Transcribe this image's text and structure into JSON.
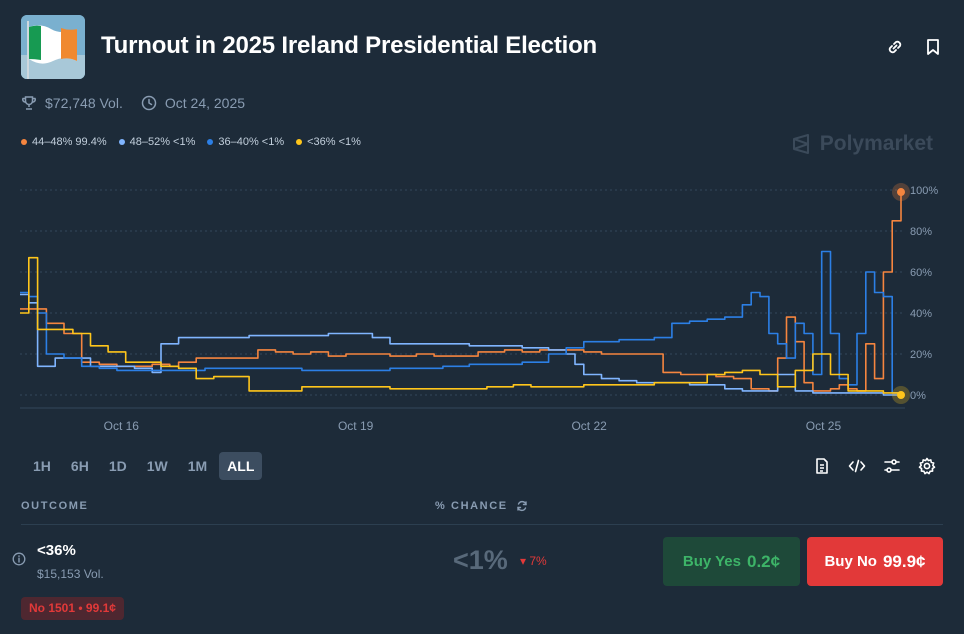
{
  "header": {
    "title": "Turnout in 2025 Ireland Presidential Election"
  },
  "meta": {
    "volume": "$72,748 Vol.",
    "date": "Oct 24, 2025"
  },
  "legend": [
    {
      "label": "44–48% 99.4%",
      "color": "#f5853f"
    },
    {
      "label": "48–52% <1%",
      "color": "#80b5ff"
    },
    {
      "label": "36–40% <1%",
      "color": "#2c7fe5"
    },
    {
      "label": "<36% <1%",
      "color": "#ffc61b"
    }
  ],
  "brand": "Polymarket",
  "chart_data": {
    "type": "line",
    "x_tick_labels": [
      "Oct 16",
      "Oct 19",
      "Oct 22",
      "Oct 25"
    ],
    "y_tick_labels": [
      "100%",
      "80%",
      "60%",
      "40%",
      "20%",
      "0%"
    ],
    "ylim": [
      0,
      100
    ],
    "grid": true,
    "series": [
      {
        "name": "44–48%",
        "color": "#f5853f",
        "values": [
          [
            0,
            42
          ],
          [
            3,
            35
          ],
          [
            5,
            30
          ],
          [
            7,
            16
          ],
          [
            9,
            15
          ],
          [
            11,
            14
          ],
          [
            13,
            14
          ],
          [
            15,
            15
          ],
          [
            17,
            14
          ],
          [
            18,
            16
          ],
          [
            20,
            18
          ],
          [
            22,
            18
          ],
          [
            25,
            18
          ],
          [
            27,
            22
          ],
          [
            29,
            21
          ],
          [
            31,
            20
          ],
          [
            33,
            21
          ],
          [
            35,
            19
          ],
          [
            37,
            20
          ],
          [
            40,
            20
          ],
          [
            42,
            19
          ],
          [
            45,
            20
          ],
          [
            47,
            19
          ],
          [
            50,
            19
          ],
          [
            52,
            21
          ],
          [
            55,
            22
          ],
          [
            57,
            21
          ],
          [
            59,
            22
          ],
          [
            62,
            22
          ],
          [
            64,
            21
          ],
          [
            66,
            20
          ],
          [
            68,
            20
          ],
          [
            70,
            20
          ],
          [
            72,
            20
          ],
          [
            73,
            11
          ],
          [
            75,
            10
          ],
          [
            77,
            10
          ],
          [
            79,
            9
          ],
          [
            81,
            8
          ],
          [
            83,
            3
          ],
          [
            85,
            2
          ],
          [
            86,
            18
          ],
          [
            87,
            38
          ],
          [
            88,
            26
          ],
          [
            89,
            6
          ],
          [
            90,
            2
          ],
          [
            92,
            3
          ],
          [
            93,
            5
          ],
          [
            94,
            3
          ],
          [
            95,
            2
          ],
          [
            96,
            25
          ],
          [
            97,
            8
          ],
          [
            98,
            60
          ],
          [
            99,
            85
          ],
          [
            100,
            99
          ]
        ]
      },
      {
        "name": "48–52%",
        "color": "#80b5ff",
        "values": [
          [
            0,
            49
          ],
          [
            1,
            45
          ],
          [
            2,
            14
          ],
          [
            4,
            18
          ],
          [
            6,
            18
          ],
          [
            8,
            14
          ],
          [
            10,
            14
          ],
          [
            12,
            14
          ],
          [
            13,
            13
          ],
          [
            14,
            13
          ],
          [
            15,
            11
          ],
          [
            16,
            25
          ],
          [
            18,
            28
          ],
          [
            20,
            28
          ],
          [
            23,
            28
          ],
          [
            26,
            29
          ],
          [
            29,
            29
          ],
          [
            32,
            29
          ],
          [
            35,
            30
          ],
          [
            38,
            30
          ],
          [
            40,
            28
          ],
          [
            42,
            25
          ],
          [
            45,
            25
          ],
          [
            48,
            25
          ],
          [
            51,
            24
          ],
          [
            54,
            24
          ],
          [
            57,
            23
          ],
          [
            60,
            22
          ],
          [
            62,
            20
          ],
          [
            63,
            15
          ],
          [
            64,
            10
          ],
          [
            66,
            8
          ],
          [
            68,
            7
          ],
          [
            70,
            6
          ],
          [
            72,
            6
          ],
          [
            74,
            6
          ],
          [
            76,
            5
          ],
          [
            78,
            5
          ],
          [
            80,
            3
          ],
          [
            82,
            2
          ],
          [
            84,
            2
          ],
          [
            86,
            10
          ],
          [
            88,
            2
          ],
          [
            90,
            1
          ],
          [
            92,
            1
          ],
          [
            95,
            1
          ],
          [
            98,
            0
          ],
          [
            100,
            0
          ]
        ]
      },
      {
        "name": "36–40%",
        "color": "#2c7fe5",
        "values": [
          [
            0,
            50
          ],
          [
            1,
            48
          ],
          [
            2,
            40
          ],
          [
            3,
            20
          ],
          [
            5,
            18
          ],
          [
            7,
            14
          ],
          [
            9,
            13
          ],
          [
            11,
            12
          ],
          [
            13,
            12
          ],
          [
            15,
            12
          ],
          [
            17,
            12
          ],
          [
            19,
            12
          ],
          [
            21,
            13
          ],
          [
            23,
            13
          ],
          [
            26,
            13
          ],
          [
            29,
            13
          ],
          [
            32,
            12
          ],
          [
            35,
            12
          ],
          [
            38,
            12
          ],
          [
            40,
            12
          ],
          [
            42,
            13
          ],
          [
            45,
            13
          ],
          [
            48,
            14
          ],
          [
            51,
            15
          ],
          [
            54,
            15
          ],
          [
            57,
            16
          ],
          [
            60,
            20
          ],
          [
            62,
            23
          ],
          [
            64,
            26
          ],
          [
            66,
            26
          ],
          [
            68,
            27
          ],
          [
            70,
            27
          ],
          [
            72,
            28
          ],
          [
            74,
            35
          ],
          [
            76,
            36
          ],
          [
            78,
            37
          ],
          [
            80,
            38
          ],
          [
            82,
            44
          ],
          [
            83,
            50
          ],
          [
            84,
            48
          ],
          [
            85,
            30
          ],
          [
            86,
            25
          ],
          [
            87,
            18
          ],
          [
            88,
            35
          ],
          [
            89,
            30
          ],
          [
            90,
            10
          ],
          [
            91,
            70
          ],
          [
            92,
            30
          ],
          [
            93,
            8
          ],
          [
            94,
            5
          ],
          [
            95,
            30
          ],
          [
            96,
            60
          ],
          [
            97,
            50
          ],
          [
            98,
            48
          ],
          [
            99,
            1
          ],
          [
            100,
            0
          ]
        ]
      },
      {
        "name": "<36%",
        "color": "#ffc61b",
        "values": [
          [
            0,
            40
          ],
          [
            1,
            67
          ],
          [
            2,
            32
          ],
          [
            4,
            32
          ],
          [
            6,
            30
          ],
          [
            8,
            24
          ],
          [
            10,
            21
          ],
          [
            12,
            16
          ],
          [
            14,
            16
          ],
          [
            16,
            14
          ],
          [
            18,
            13
          ],
          [
            20,
            8
          ],
          [
            22,
            9
          ],
          [
            24,
            9
          ],
          [
            26,
            2
          ],
          [
            28,
            2
          ],
          [
            30,
            2
          ],
          [
            32,
            4
          ],
          [
            35,
            4
          ],
          [
            38,
            4
          ],
          [
            40,
            4
          ],
          [
            42,
            3
          ],
          [
            45,
            3
          ],
          [
            48,
            3
          ],
          [
            50,
            3
          ],
          [
            53,
            4
          ],
          [
            56,
            5
          ],
          [
            58,
            4
          ],
          [
            60,
            4
          ],
          [
            62,
            4
          ],
          [
            64,
            5
          ],
          [
            66,
            5
          ],
          [
            68,
            5
          ],
          [
            70,
            5
          ],
          [
            72,
            6
          ],
          [
            74,
            6
          ],
          [
            76,
            6
          ],
          [
            78,
            10
          ],
          [
            80,
            11
          ],
          [
            82,
            12
          ],
          [
            84,
            10
          ],
          [
            86,
            4
          ],
          [
            88,
            12
          ],
          [
            90,
            20
          ],
          [
            91,
            20
          ],
          [
            92,
            10
          ],
          [
            94,
            2
          ],
          [
            96,
            2
          ],
          [
            98,
            1
          ],
          [
            100,
            0
          ]
        ]
      }
    ]
  },
  "ranges": [
    "1H",
    "6H",
    "1D",
    "1W",
    "1M",
    "ALL"
  ],
  "active_range": "ALL",
  "table": {
    "col_outcome": "OUTCOME",
    "col_chance": "% CHANCE"
  },
  "outcome": {
    "name": "<36%",
    "volume": "$15,153 Vol.",
    "chance": "<1%",
    "delta": "▾ 7%",
    "buy_yes_label": "Buy Yes",
    "buy_yes_price": "0.2¢",
    "buy_no_label": "Buy No",
    "buy_no_price": "99.9¢",
    "position": "No 1501 • 99.1¢"
  }
}
